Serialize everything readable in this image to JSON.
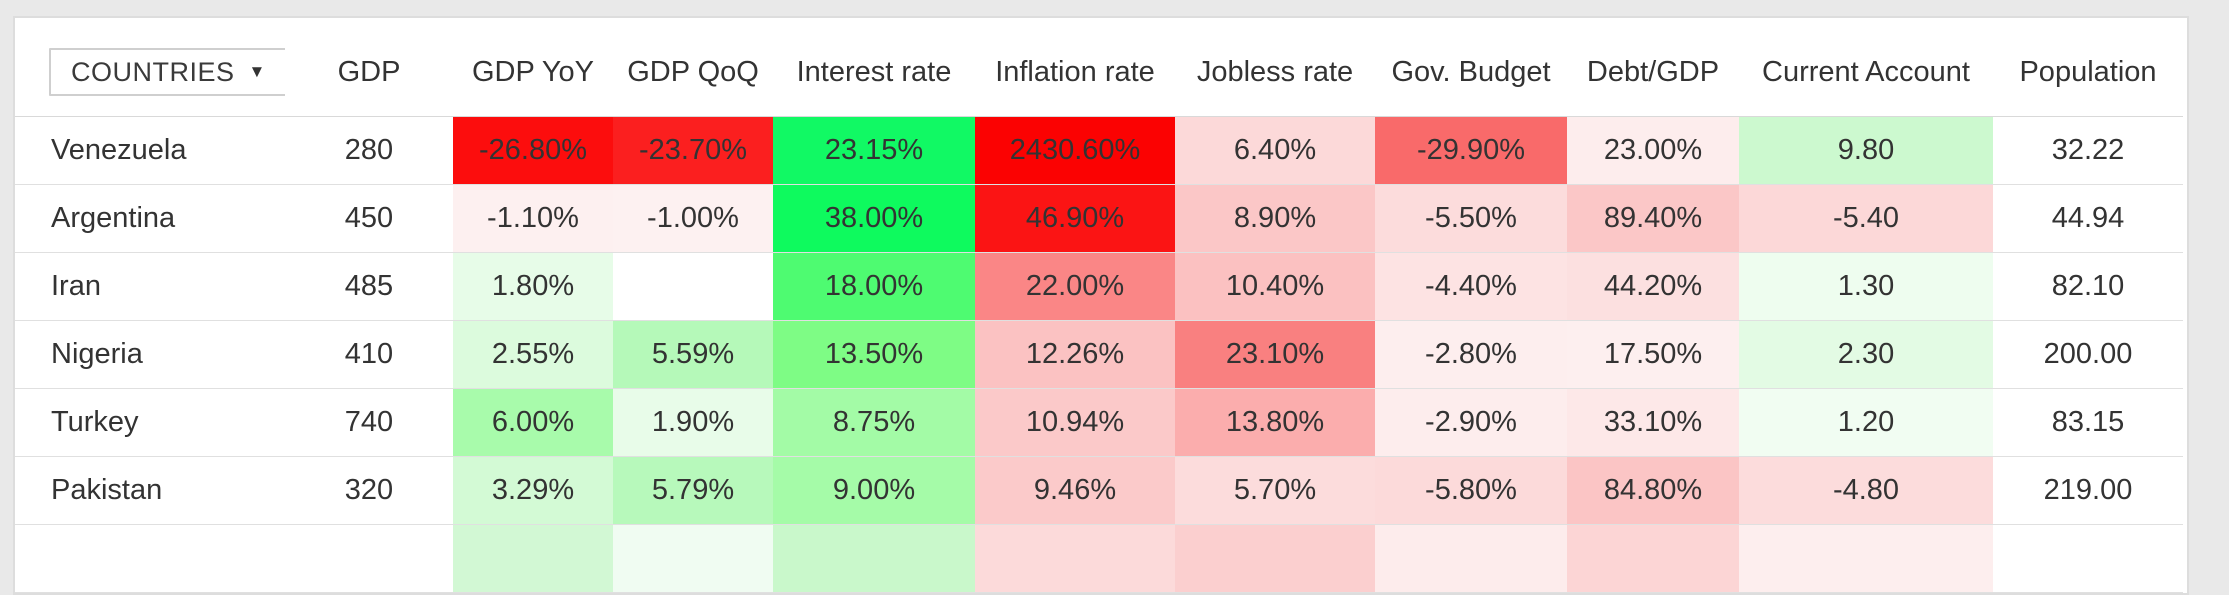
{
  "app": {
    "background": "#e9e9e9",
    "panel_border": "#dddddd"
  },
  "header": {
    "countries_label": "COUNTRIES",
    "countries_arrow": "▼",
    "columns": [
      "GDP",
      "GDP YoY",
      "GDP QoQ",
      "Interest rate",
      "Inflation rate",
      "Jobless rate",
      "Gov. Budget",
      "Debt/GDP",
      "Current Account",
      "Population"
    ]
  },
  "rows": [
    {
      "country": "Venezuela",
      "values": [
        {
          "t": "280",
          "bg": "#ffffff"
        },
        {
          "t": "-26.80%",
          "bg": "#fc0d0d"
        },
        {
          "t": "-23.70%",
          "bg": "#fb1f1f"
        },
        {
          "t": "23.15%",
          "bg": "#11f964"
        },
        {
          "t": "2430.60%",
          "bg": "#fb0202"
        },
        {
          "t": "6.40%",
          "bg": "#fcd9d9"
        },
        {
          "t": "-29.90%",
          "bg": "#f96a6a"
        },
        {
          "t": "23.00%",
          "bg": "#fdeded"
        },
        {
          "t": "9.80",
          "bg": "#ccf9cf"
        },
        {
          "t": "32.22",
          "bg": "#ffffff"
        }
      ]
    },
    {
      "country": "Argentina",
      "values": [
        {
          "t": "450",
          "bg": "#ffffff"
        },
        {
          "t": "-1.10%",
          "bg": "#fdf0f0"
        },
        {
          "t": "-1.00%",
          "bg": "#fdf1f1"
        },
        {
          "t": "38.00%",
          "bg": "#0efa5e"
        },
        {
          "t": "46.90%",
          "bg": "#fb1414"
        },
        {
          "t": "8.90%",
          "bg": "#fbc7c7"
        },
        {
          "t": "-5.50%",
          "bg": "#fcdcdc"
        },
        {
          "t": "89.40%",
          "bg": "#fbc7c7"
        },
        {
          "t": "-5.40",
          "bg": "#fcd8d8"
        },
        {
          "t": "44.94",
          "bg": "#ffffff"
        }
      ]
    },
    {
      "country": "Iran",
      "values": [
        {
          "t": "485",
          "bg": "#ffffff"
        },
        {
          "t": "1.80%",
          "bg": "#e7fce8"
        },
        {
          "t": "",
          "bg": "#ffffff"
        },
        {
          "t": "18.00%",
          "bg": "#4efb71"
        },
        {
          "t": "22.00%",
          "bg": "#fa8686"
        },
        {
          "t": "10.40%",
          "bg": "#fbc1c1"
        },
        {
          "t": "-4.40%",
          "bg": "#fde3e3"
        },
        {
          "t": "44.20%",
          "bg": "#fce0e0"
        },
        {
          "t": "1.30",
          "bg": "#eefdef"
        },
        {
          "t": "82.10",
          "bg": "#ffffff"
        }
      ]
    },
    {
      "country": "Nigeria",
      "values": [
        {
          "t": "410",
          "bg": "#ffffff"
        },
        {
          "t": "2.55%",
          "bg": "#dcfbdd"
        },
        {
          "t": "5.59%",
          "bg": "#b5f9b9"
        },
        {
          "t": "13.50%",
          "bg": "#7efc85"
        },
        {
          "t": "12.26%",
          "bg": "#fbc2c2"
        },
        {
          "t": "23.10%",
          "bg": "#f98080"
        },
        {
          "t": "-2.80%",
          "bg": "#fdeeee"
        },
        {
          "t": "17.50%",
          "bg": "#fdefef"
        },
        {
          "t": "2.30",
          "bg": "#e3fbe4"
        },
        {
          "t": "200.00",
          "bg": "#ffffff"
        }
      ]
    },
    {
      "country": "Turkey",
      "values": [
        {
          "t": "740",
          "bg": "#ffffff"
        },
        {
          "t": "6.00%",
          "bg": "#a8fbab"
        },
        {
          "t": "1.90%",
          "bg": "#e8fce9"
        },
        {
          "t": "8.75%",
          "bg": "#a3fba6"
        },
        {
          "t": "10.94%",
          "bg": "#fbc9c9"
        },
        {
          "t": "13.80%",
          "bg": "#fbadad"
        },
        {
          "t": "-2.90%",
          "bg": "#fdeded"
        },
        {
          "t": "33.10%",
          "bg": "#fde8e8"
        },
        {
          "t": "1.20",
          "bg": "#f1fdf2"
        },
        {
          "t": "83.15",
          "bg": "#ffffff"
        }
      ]
    },
    {
      "country": "Pakistan",
      "values": [
        {
          "t": "320",
          "bg": "#ffffff"
        },
        {
          "t": "3.29%",
          "bg": "#d3fad5"
        },
        {
          "t": "5.79%",
          "bg": "#b7f9bb"
        },
        {
          "t": "9.00%",
          "bg": "#a5fba8"
        },
        {
          "t": "9.46%",
          "bg": "#fbcaca"
        },
        {
          "t": "5.70%",
          "bg": "#fcdcdc"
        },
        {
          "t": "-5.80%",
          "bg": "#fcdada"
        },
        {
          "t": "84.80%",
          "bg": "#fbc5c5"
        },
        {
          "t": "-4.80",
          "bg": "#fcdcdc"
        },
        {
          "t": "219.00",
          "bg": "#ffffff"
        }
      ]
    },
    {
      "country": "",
      "values": [
        {
          "t": "",
          "bg": "#ffffff"
        },
        {
          "t": "",
          "bg": "#d2f8d4"
        },
        {
          "t": "",
          "bg": "#f0fcf2"
        },
        {
          "t": "",
          "bg": "#c9f8cb"
        },
        {
          "t": "",
          "bg": "#fcdada"
        },
        {
          "t": "",
          "bg": "#fbcfcf"
        },
        {
          "t": "",
          "bg": "#fdecec"
        },
        {
          "t": "",
          "bg": "#fcd5d5"
        },
        {
          "t": "",
          "bg": "#fdeeee"
        },
        {
          "t": "",
          "bg": "#ffffff"
        }
      ]
    }
  ]
}
